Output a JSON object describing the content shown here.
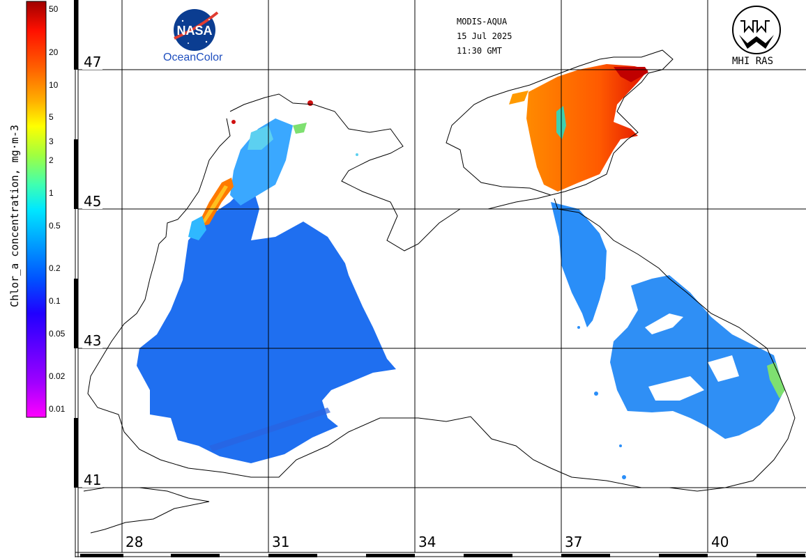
{
  "header": {
    "sensor": "MODIS-AQUA",
    "date": "15 Jul 2025",
    "time": "11:30 GMT"
  },
  "logos": {
    "nasa_wordmark": "NASA",
    "nasa_caption": "OceanColor",
    "mhi_caption": "MHI RAS"
  },
  "colorbar": {
    "label": "Chlor_a concentration, mg·m-3",
    "scale": "log",
    "ticks": [
      "50",
      "20",
      "10",
      "5",
      "3",
      "2",
      "1",
      "0.5",
      "0.2",
      "0.1",
      "0.05",
      "0.02",
      "0.01"
    ],
    "colors": [
      "#ff00ff",
      "#a000ff",
      "#2000ff",
      "#0050ff",
      "#00a0ff",
      "#00e8ff",
      "#40ffb0",
      "#a0ff40",
      "#ffff00",
      "#ffb000",
      "#ff6000",
      "#ff1000",
      "#a00000"
    ]
  },
  "grid": {
    "lat_labels": [
      "47",
      "45",
      "43",
      "41"
    ],
    "lon_labels": [
      "28",
      "31",
      "34",
      "37",
      "40"
    ]
  }
}
